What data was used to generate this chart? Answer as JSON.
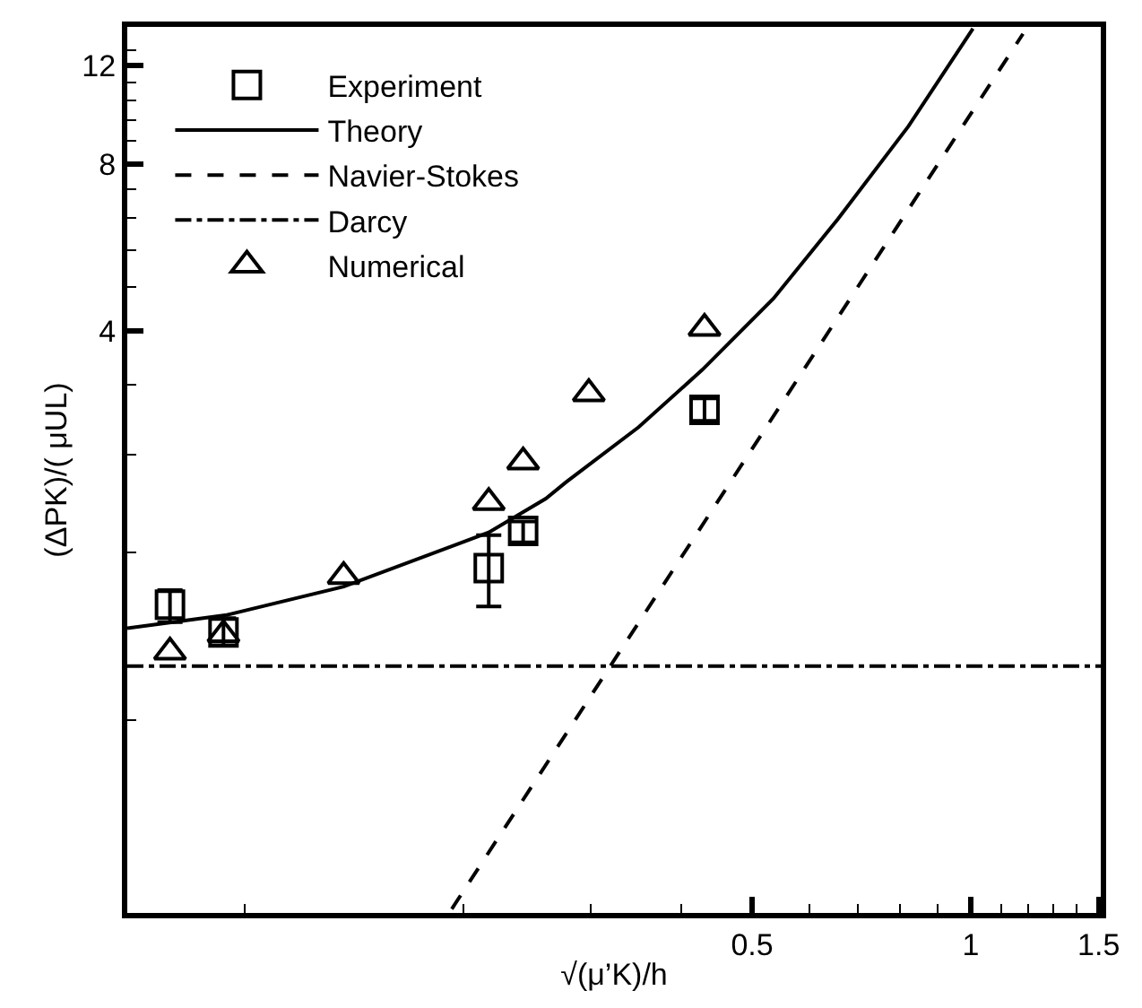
{
  "chart_data": {
    "type": "line",
    "xlabel": "√(μ’K)/h",
    "ylabel": "(ΔPK)/( μUL)",
    "log": "xy",
    "legend": "top left",
    "xlim": [
      0.069,
      1.51
    ],
    "ylim": [
      0.36,
      14.1
    ],
    "xticks": [
      {
        "value": 0.1,
        "label": null
      },
      {
        "value": 0.2,
        "label": null
      },
      {
        "value": 0.3,
        "label": null
      },
      {
        "value": 0.4,
        "label": null
      },
      0.5,
      {
        "value": 0.6,
        "label": null
      },
      {
        "value": 0.7,
        "label": null
      },
      {
        "value": 0.8,
        "label": null
      },
      {
        "value": 0.9,
        "label": null
      },
      1,
      {
        "value": 1.1,
        "label": null
      },
      {
        "value": 1.2,
        "label": null
      },
      {
        "value": 1.3,
        "label": null
      },
      {
        "value": 1.4,
        "label": null
      },
      1.5
    ],
    "yticks": [
      {
        "value": 0.8,
        "label": null
      },
      {
        "value": 1.6,
        "label": null
      },
      {
        "value": 2.4,
        "label": null
      },
      {
        "value": 3.2,
        "label": null
      },
      4,
      {
        "value": 4.8,
        "label": null
      },
      {
        "value": 5.6,
        "label": null
      },
      {
        "value": 6.4,
        "label": null
      },
      {
        "value": 7.2,
        "label": null
      },
      8,
      {
        "value": 8.8,
        "label": null
      },
      {
        "value": 9.6,
        "label": null
      },
      {
        "value": 10.4,
        "label": null
      },
      {
        "value": 11.2,
        "label": null
      },
      12,
      {
        "value": 12.8,
        "label": null
      }
    ],
    "series": [
      {
        "name": "Experiment",
        "type": "scatter",
        "marker": "square",
        "color": "#000000",
        "x": [
          0.079,
          0.0936,
          0.217,
          0.242,
          0.43
        ],
        "values": [
          1.29,
          1.15,
          1.5,
          1.75,
          2.89
        ],
        "errors": [
          [
            1.2,
            1.37
          ],
          [
            1.09,
            1.22
          ],
          [
            1.28,
            1.72
          ],
          [
            1.67,
            1.82
          ],
          [
            2.76,
            3.03
          ]
        ]
      },
      {
        "name": "Theory",
        "line_style": "solid",
        "color": "#000000",
        "x": [
          0.069,
          0.0946,
          0.137,
          0.217,
          0.26,
          0.277,
          0.349,
          0.427,
          0.535,
          0.656,
          0.821,
          1.007
        ],
        "values": [
          1.17,
          1.236,
          1.39,
          1.74,
          2.0,
          2.14,
          2.69,
          3.41,
          4.58,
          6.36,
          9.35,
          14.0
        ]
      },
      {
        "name": "Navier-Stokes",
        "line_style": "dashed",
        "color": "#000000",
        "x": [
          0.193,
          1.18
        ],
        "values": [
          0.366,
          13.7
        ]
      },
      {
        "name": "Darcy",
        "line_style": "dashdot",
        "color": "#000000",
        "x": [
          0.069,
          1.51
        ],
        "values": [
          1,
          1
        ]
      },
      {
        "name": "Numerical",
        "type": "scatter",
        "marker": "triangle",
        "color": "#000000",
        "x": [
          0.079,
          0.0936,
          0.137,
          0.217,
          0.242,
          0.298,
          0.43
        ],
        "values": [
          1.06,
          1.14,
          1.45,
          1.97,
          2.33,
          3.09,
          4.05
        ]
      }
    ]
  }
}
